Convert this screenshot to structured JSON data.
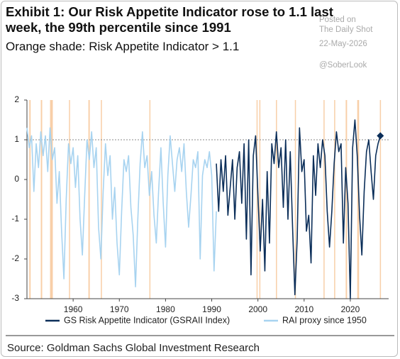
{
  "chart_data": {
    "type": "line",
    "title": "Exhibit 1: Our Risk Appetite Indicator rose to 1.1 last week, the 99th percentile since 1991",
    "subtitle": "Orange shade: Risk Appetite Indicator > 1.1",
    "watermark": [
      "Posted on",
      "The Daily Shot",
      "22-May-2026",
      "@SoberLook"
    ],
    "source": "Source: Goldman Sachs Global Investment Research",
    "xlim": [
      1950,
      2028.3
    ],
    "xticks": [
      1960,
      1970,
      1980,
      1990,
      2000,
      2010,
      2020
    ],
    "ylim": [
      -3,
      2
    ],
    "yticks": [
      -3,
      -2,
      -1,
      0,
      1,
      2
    ],
    "reference_line": 1,
    "shade_color": "#f8cfa8",
    "shaded_periods": [
      [
        1950.5,
        1950.8
      ],
      [
        1953.0,
        1953.3
      ],
      [
        1955.0,
        1955.6
      ],
      [
        1959.1,
        1959.3
      ],
      [
        1963.3,
        1963.6
      ],
      [
        1966.0,
        1966.2
      ],
      [
        1976.5,
        1976.7
      ],
      [
        1999.7,
        1999.9
      ],
      [
        2000.3,
        2000.5
      ],
      [
        2003.9,
        2004.1
      ],
      [
        2008.0,
        2008.2
      ],
      [
        2014.2,
        2014.4
      ],
      [
        2016.5,
        2016.7
      ],
      [
        2019.0,
        2019.3
      ],
      [
        2021.5,
        2021.9
      ],
      [
        2026.4,
        2026.6
      ]
    ],
    "series": [
      {
        "name": "GS Risk Appetite Indicator (GSRAII Index)",
        "color": "#0b2e59",
        "end_marker": true,
        "x": [
          1991,
          1991.5,
          1992,
          1992.5,
          1993,
          1993.5,
          1994,
          1994.5,
          1995,
          1995.5,
          1996,
          1996.5,
          1997,
          1997.5,
          1998,
          1998.5,
          1999,
          1999.5,
          2000,
          2000.5,
          2001,
          2001.5,
          2002,
          2002.5,
          2003,
          2003.5,
          2004,
          2004.5,
          2005,
          2005.5,
          2006,
          2006.5,
          2007,
          2007.5,
          2008,
          2008.5,
          2009,
          2009.5,
          2010,
          2010.5,
          2011,
          2011.5,
          2012,
          2012.5,
          2013,
          2013.5,
          2014,
          2014.5,
          2015,
          2015.5,
          2016,
          2016.5,
          2017,
          2017.5,
          2018,
          2018.5,
          2019,
          2019.5,
          2020,
          2020.5,
          2021,
          2021.5,
          2022,
          2022.5,
          2023,
          2023.5,
          2024,
          2024.5,
          2025,
          2025.5,
          2026,
          2026.5
        ],
        "values": [
          0.4,
          -0.8,
          0.5,
          -0.3,
          0.6,
          -0.9,
          -0.2,
          0.5,
          -1.0,
          0.3,
          0.7,
          -0.6,
          0.9,
          -1.5,
          1.0,
          -2.4,
          0.6,
          1.1,
          -0.4,
          -1.8,
          -0.5,
          -2.3,
          0.2,
          -1.6,
          0.9,
          0.4,
          1.2,
          0.3,
          0.8,
          -0.7,
          1.0,
          -1.0,
          0.7,
          -1.2,
          -2.9,
          -1.5,
          1.3,
          0.2,
          0.5,
          -1.3,
          -0.9,
          -2.1,
          0.6,
          -0.4,
          0.9,
          0.3,
          1.0,
          0.6,
          -0.8,
          -1.7,
          -0.8,
          0.4,
          1.2,
          0.7,
          0.9,
          -1.6,
          0.3,
          -0.6,
          -3.0,
          0.8,
          1.5,
          0.6,
          -0.9,
          -1.9,
          -0.3,
          0.7,
          1.0,
          0.2,
          -0.5,
          0.6,
          0.9,
          1.1
        ]
      },
      {
        "name": "RAI proxy since 1950",
        "color": "#a7d3f0",
        "x": [
          1950,
          1950.5,
          1951,
          1951.5,
          1952,
          1952.5,
          1953,
          1953.5,
          1954,
          1954.5,
          1955,
          1955.5,
          1956,
          1956.5,
          1957,
          1957.5,
          1958,
          1958.5,
          1959,
          1959.5,
          1960,
          1960.5,
          1961,
          1961.5,
          1962,
          1962.5,
          1963,
          1963.5,
          1964,
          1964.5,
          1965,
          1965.5,
          1966,
          1966.5,
          1967,
          1967.5,
          1968,
          1968.5,
          1969,
          1969.5,
          1970,
          1970.5,
          1971,
          1971.5,
          1972,
          1972.5,
          1973,
          1973.5,
          1974,
          1974.5,
          1975,
          1975.5,
          1976,
          1976.5,
          1977,
          1977.5,
          1978,
          1978.5,
          1979,
          1979.5,
          1980,
          1980.5,
          1981,
          1981.5,
          1982,
          1982.5,
          1983,
          1983.5,
          1984,
          1984.5,
          1985,
          1985.5,
          1986,
          1986.5,
          1987,
          1987.5,
          1988,
          1988.5,
          1989,
          1989.5,
          1990,
          1990.5,
          1991
        ],
        "values": [
          1.3,
          0.8,
          1.1,
          -0.3,
          0.9,
          0.3,
          1.2,
          0.6,
          1.1,
          0.2,
          1.3,
          0.5,
          0.8,
          -0.6,
          0.2,
          -1.3,
          -2.5,
          -0.5,
          0.9,
          0.4,
          0.8,
          -0.2,
          0.6,
          -1.0,
          -1.9,
          -0.4,
          1.0,
          0.5,
          1.2,
          0.3,
          0.8,
          -1.2,
          -2.0,
          -0.3,
          0.9,
          0.1,
          0.6,
          -1.0,
          -0.2,
          -1.6,
          -2.4,
          -0.8,
          0.5,
          0.2,
          0.6,
          -0.7,
          -1.4,
          -2.7,
          -1.0,
          0.4,
          1.2,
          0.3,
          0.6,
          -0.4,
          0.2,
          -0.9,
          -1.6,
          -0.3,
          0.8,
          -0.6,
          -1.7,
          0.1,
          1.1,
          0.4,
          -0.3,
          0.5,
          0.8,
          0.2,
          0.9,
          -0.3,
          -1.2,
          -0.4,
          0.5,
          0.3,
          0.7,
          -2.0,
          0.1,
          0.5,
          0.3,
          0.7,
          0.1,
          -2.3,
          -0.8
        ]
      }
    ]
  }
}
